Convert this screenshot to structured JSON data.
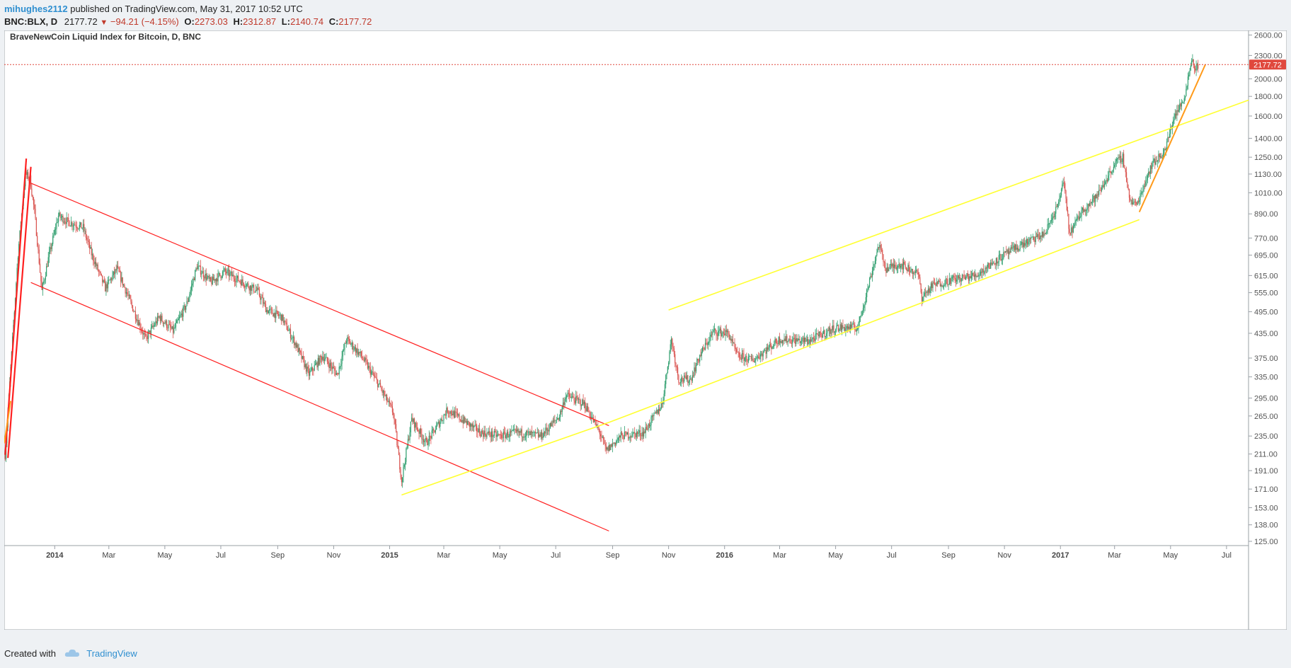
{
  "header": {
    "author": "mihughes2112",
    "published_text": "published on TradingView.com, May 31, 2017 10:52 UTC",
    "symbol": "BNC:BLX, D",
    "last": "2177.72",
    "change": "−94.21 (−4.15%)",
    "o_label": "O:",
    "o": "2273.03",
    "h_label": "H:",
    "h": "2312.87",
    "l_label": "L:",
    "l": "2140.74",
    "c_label": "C:",
    "c": "2177.72"
  },
  "footer": {
    "created_with": "Created with",
    "brand": "TradingView",
    "brand_icon": "tradingview-cloud-icon"
  },
  "colors": {
    "up": "#2e9e6e",
    "down": "#d9534f",
    "red_channel": "#ff2020",
    "yellow_channel": "#ffff33",
    "orange_line": "#ff9a1a",
    "price_tag": "#e0483d",
    "axis_text": "#555555"
  },
  "chart_data": {
    "type": "candlestick",
    "title": "BraveNewCoin Liquid Index for Bitcoin, D, BNC",
    "y_scale": "log",
    "ylim": [
      125,
      2650
    ],
    "y_ticks": [
      125,
      138,
      153,
      171,
      191,
      211,
      235,
      265,
      295,
      335,
      375,
      435,
      495,
      555,
      615,
      695,
      770,
      890,
      1010,
      1130,
      1250,
      1400,
      1600,
      1800,
      2000,
      2300,
      2600
    ],
    "y_tick_labels": [
      "125.00",
      "138.00",
      "153.00",
      "171.00",
      "191.00",
      "211.00",
      "235.00",
      "265.00",
      "295.00",
      "335.00",
      "375.00",
      "435.00",
      "495.00",
      "555.00",
      "615.00",
      "695.00",
      "770.00",
      "890.00",
      "1010.00",
      "1130.00",
      "1250.00",
      "1400.00",
      "1600.00",
      "1800.00",
      "2000.00",
      "2300.00",
      "2600.00"
    ],
    "x_range": [
      "2013-11-07",
      "2017-07-25"
    ],
    "x_ticks": [
      {
        "date": "2014-01-01",
        "label": "2014",
        "bold": true
      },
      {
        "date": "2014-03-01",
        "label": "Mar",
        "bold": false
      },
      {
        "date": "2014-05-01",
        "label": "May",
        "bold": false
      },
      {
        "date": "2014-07-01",
        "label": "Jul",
        "bold": false
      },
      {
        "date": "2014-09-01",
        "label": "Sep",
        "bold": false
      },
      {
        "date": "2014-11-01",
        "label": "Nov",
        "bold": false
      },
      {
        "date": "2015-01-01",
        "label": "2015",
        "bold": true
      },
      {
        "date": "2015-03-01",
        "label": "Mar",
        "bold": false
      },
      {
        "date": "2015-05-01",
        "label": "May",
        "bold": false
      },
      {
        "date": "2015-07-01",
        "label": "Jul",
        "bold": false
      },
      {
        "date": "2015-09-01",
        "label": "Sep",
        "bold": false
      },
      {
        "date": "2015-11-01",
        "label": "Nov",
        "bold": false
      },
      {
        "date": "2016-01-01",
        "label": "2016",
        "bold": true
      },
      {
        "date": "2016-03-01",
        "label": "Mar",
        "bold": false
      },
      {
        "date": "2016-05-01",
        "label": "May",
        "bold": false
      },
      {
        "date": "2016-07-01",
        "label": "Jul",
        "bold": false
      },
      {
        "date": "2016-09-01",
        "label": "Sep",
        "bold": false
      },
      {
        "date": "2016-11-01",
        "label": "Nov",
        "bold": false
      },
      {
        "date": "2017-01-01",
        "label": "2017",
        "bold": true
      },
      {
        "date": "2017-03-01",
        "label": "Mar",
        "bold": false
      },
      {
        "date": "2017-05-01",
        "label": "May",
        "bold": false
      },
      {
        "date": "2017-07-01",
        "label": "Jul",
        "bold": false
      }
    ],
    "last_price": 2177.72,
    "last_price_label": "2177.72",
    "price_path": [
      [
        "2013-11-08",
        210
      ],
      [
        "2013-11-22",
        700
      ],
      [
        "2013-11-30",
        1130
      ],
      [
        "2013-12-05",
        1100
      ],
      [
        "2013-12-10",
        900
      ],
      [
        "2013-12-18",
        560
      ],
      [
        "2013-12-25",
        680
      ],
      [
        "2014-01-05",
        880
      ],
      [
        "2014-01-15",
        850
      ],
      [
        "2014-02-01",
        820
      ],
      [
        "2014-02-10",
        700
      ],
      [
        "2014-02-25",
        570
      ],
      [
        "2014-03-10",
        640
      ],
      [
        "2014-03-25",
        520
      ],
      [
        "2014-04-10",
        420
      ],
      [
        "2014-04-25",
        480
      ],
      [
        "2014-05-10",
        440
      ],
      [
        "2014-05-25",
        520
      ],
      [
        "2014-06-05",
        650
      ],
      [
        "2014-06-20",
        590
      ],
      [
        "2014-07-05",
        630
      ],
      [
        "2014-07-25",
        590
      ],
      [
        "2014-08-10",
        560
      ],
      [
        "2014-08-20",
        500
      ],
      [
        "2014-09-05",
        480
      ],
      [
        "2014-09-20",
        410
      ],
      [
        "2014-10-05",
        340
      ],
      [
        "2014-10-20",
        380
      ],
      [
        "2014-11-05",
        340
      ],
      [
        "2014-11-15",
        420
      ],
      [
        "2014-12-01",
        380
      ],
      [
        "2014-12-20",
        320
      ],
      [
        "2015-01-05",
        270
      ],
      [
        "2015-01-14",
        180
      ],
      [
        "2015-01-25",
        260
      ],
      [
        "2015-02-10",
        225
      ],
      [
        "2015-03-05",
        275
      ],
      [
        "2015-03-20",
        260
      ],
      [
        "2015-04-10",
        240
      ],
      [
        "2015-05-01",
        235
      ],
      [
        "2015-05-20",
        240
      ],
      [
        "2015-06-15",
        235
      ],
      [
        "2015-07-05",
        265
      ],
      [
        "2015-07-12",
        300
      ],
      [
        "2015-08-01",
        285
      ],
      [
        "2015-08-18",
        240
      ],
      [
        "2015-08-25",
        215
      ],
      [
        "2015-09-10",
        235
      ],
      [
        "2015-10-05",
        240
      ],
      [
        "2015-10-25",
        285
      ],
      [
        "2015-11-04",
        420
      ],
      [
        "2015-11-12",
        330
      ],
      [
        "2015-11-25",
        330
      ],
      [
        "2015-12-05",
        380
      ],
      [
        "2015-12-20",
        440
      ],
      [
        "2016-01-05",
        435
      ],
      [
        "2016-01-15",
        380
      ],
      [
        "2016-02-01",
        370
      ],
      [
        "2016-03-01",
        420
      ],
      [
        "2016-04-01",
        415
      ],
      [
        "2016-05-01",
        450
      ],
      [
        "2016-05-25",
        450
      ],
      [
        "2016-06-05",
        570
      ],
      [
        "2016-06-17",
        740
      ],
      [
        "2016-06-25",
        640
      ],
      [
        "2016-07-10",
        660
      ],
      [
        "2016-07-30",
        620
      ],
      [
        "2016-08-03",
        540
      ],
      [
        "2016-08-15",
        580
      ],
      [
        "2016-09-05",
        600
      ],
      [
        "2016-10-01",
        615
      ],
      [
        "2016-10-25",
        680
      ],
      [
        "2016-11-20",
        740
      ],
      [
        "2016-12-15",
        790
      ],
      [
        "2016-12-31",
        960
      ],
      [
        "2017-01-04",
        1100
      ],
      [
        "2017-01-11",
        790
      ],
      [
        "2017-01-25",
        910
      ],
      [
        "2017-02-10",
        990
      ],
      [
        "2017-03-01",
        1200
      ],
      [
        "2017-03-10",
        1250
      ],
      [
        "2017-03-18",
        960
      ],
      [
        "2017-03-25",
        940
      ],
      [
        "2017-04-10",
        1190
      ],
      [
        "2017-04-25",
        1300
      ],
      [
        "2017-05-05",
        1600
      ],
      [
        "2017-05-15",
        1750
      ],
      [
        "2017-05-25",
        2300
      ],
      [
        "2017-05-27",
        2100
      ],
      [
        "2017-05-31",
        2177
      ]
    ],
    "drawings": [
      {
        "color": "red",
        "width": 2.2,
        "points": [
          [
            "2013-11-08",
            210
          ],
          [
            "2013-12-01",
            1240
          ]
        ]
      },
      {
        "color": "red",
        "width": 2.2,
        "points": [
          [
            "2013-11-11",
            206
          ],
          [
            "2013-12-06",
            1180
          ]
        ]
      },
      {
        "color": "red",
        "width": 1.2,
        "points": [
          [
            "2013-12-06",
            1070
          ],
          [
            "2015-08-28",
            250
          ]
        ]
      },
      {
        "color": "red",
        "width": 1.2,
        "points": [
          [
            "2013-12-06",
            590
          ],
          [
            "2015-08-28",
            133
          ]
        ]
      },
      {
        "color": "yellow",
        "width": 1.6,
        "points": [
          [
            "2015-01-14",
            165
          ],
          [
            "2015-08-28",
            255
          ]
        ]
      },
      {
        "color": "yellow",
        "width": 1.6,
        "points": [
          [
            "2015-08-28",
            255
          ],
          [
            "2017-03-28",
            860
          ]
        ]
      },
      {
        "color": "yellow",
        "width": 1.6,
        "points": [
          [
            "2015-11-01",
            500
          ],
          [
            "2017-07-25",
            1760
          ]
        ]
      },
      {
        "color": "orange",
        "width": 2,
        "points": [
          [
            "2017-03-28",
            900
          ],
          [
            "2017-06-08",
            2180
          ]
        ]
      },
      {
        "color": "orange",
        "width": 2,
        "points": [
          [
            "2013-11-07",
            225
          ],
          [
            "2013-11-14",
            290
          ]
        ]
      }
    ]
  }
}
